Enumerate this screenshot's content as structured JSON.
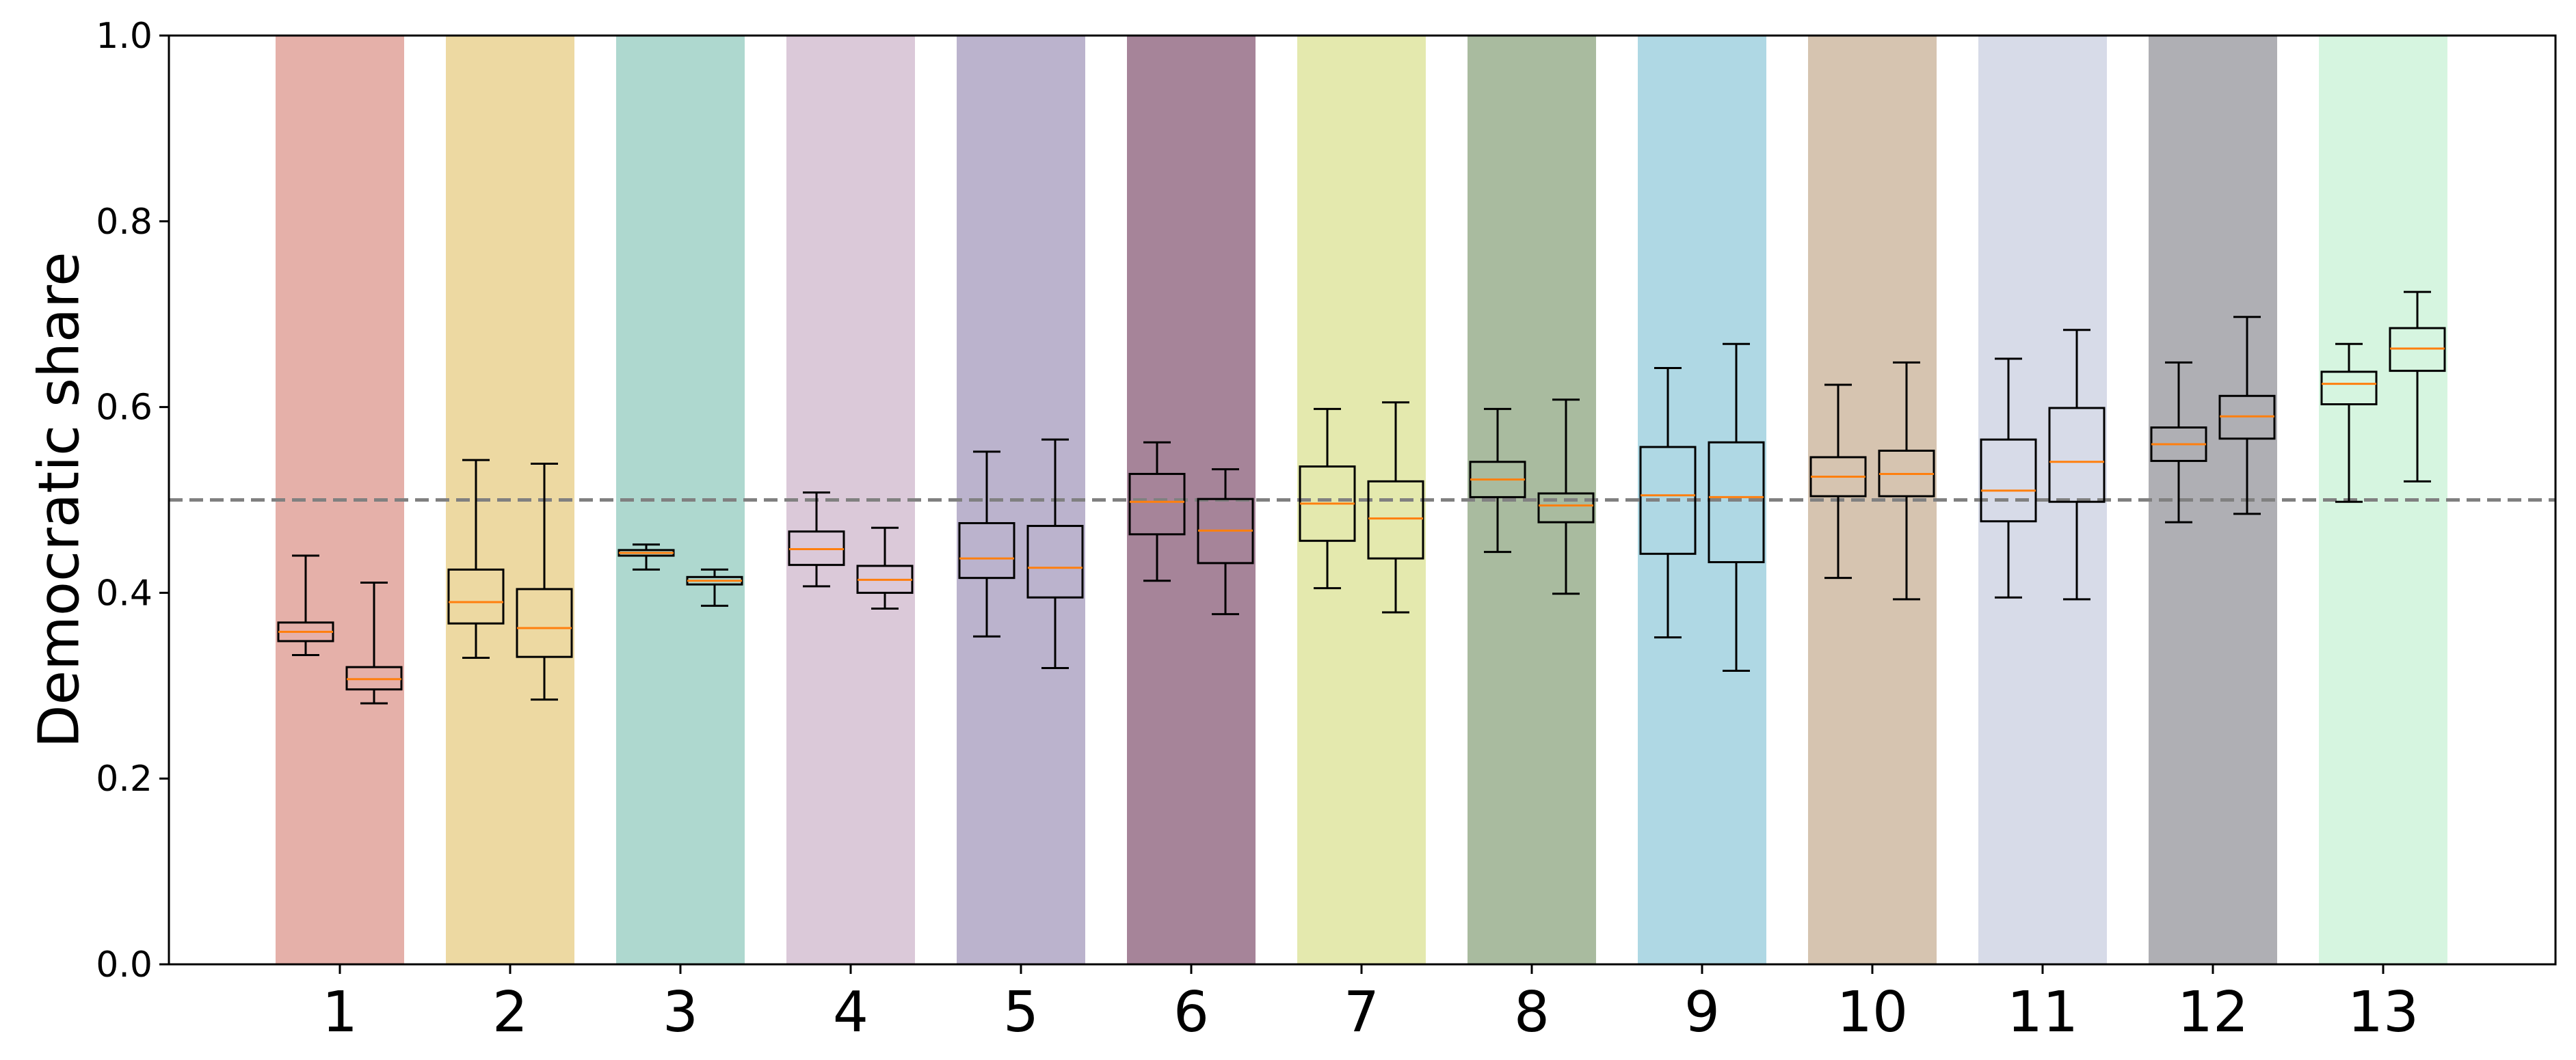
{
  "chart_data": {
    "type": "box",
    "ylabel": "Democratic share",
    "xlabel": "",
    "ylim": [
      0.0,
      1.0
    ],
    "yticks": [
      "0.0",
      "0.2",
      "0.4",
      "0.6",
      "0.8",
      "1.0"
    ],
    "reference_line": {
      "y": 0.5,
      "style": "dashed",
      "color": "#808080"
    },
    "box_edge_color": "#000000",
    "median_color": "#ff7f0e",
    "groups": [
      {
        "label": "1",
        "color": "#e5b0a9",
        "boxes": [
          {
            "whislo": 0.333,
            "q1": 0.348,
            "med": 0.358,
            "q3": 0.368,
            "whishi": 0.44
          },
          {
            "whislo": 0.281,
            "q1": 0.296,
            "med": 0.307,
            "q3": 0.32,
            "whishi": 0.411
          }
        ]
      },
      {
        "label": "2",
        "color": "#edd9a2",
        "boxes": [
          {
            "whislo": 0.33,
            "q1": 0.367,
            "med": 0.39,
            "q3": 0.425,
            "whishi": 0.543
          },
          {
            "whislo": 0.285,
            "q1": 0.331,
            "med": 0.362,
            "q3": 0.404,
            "whishi": 0.539
          }
        ]
      },
      {
        "label": "3",
        "color": "#aed8cf",
        "boxes": [
          {
            "whislo": 0.425,
            "q1": 0.44,
            "med": 0.443,
            "q3": 0.446,
            "whishi": 0.452
          },
          {
            "whislo": 0.386,
            "q1": 0.409,
            "med": 0.413,
            "q3": 0.417,
            "whishi": 0.425
          }
        ]
      },
      {
        "label": "4",
        "color": "#dbc9d9",
        "boxes": [
          {
            "whislo": 0.407,
            "q1": 0.43,
            "med": 0.447,
            "q3": 0.466,
            "whishi": 0.508
          },
          {
            "whislo": 0.383,
            "q1": 0.4,
            "med": 0.414,
            "q3": 0.429,
            "whishi": 0.47
          }
        ]
      },
      {
        "label": "5",
        "color": "#bbb3cd",
        "boxes": [
          {
            "whislo": 0.353,
            "q1": 0.416,
            "med": 0.437,
            "q3": 0.475,
            "whishi": 0.552
          },
          {
            "whislo": 0.319,
            "q1": 0.395,
            "med": 0.427,
            "q3": 0.472,
            "whishi": 0.565
          }
        ]
      },
      {
        "label": "6",
        "color": "#a68499",
        "boxes": [
          {
            "whislo": 0.413,
            "q1": 0.463,
            "med": 0.498,
            "q3": 0.528,
            "whishi": 0.562
          },
          {
            "whislo": 0.377,
            "q1": 0.432,
            "med": 0.467,
            "q3": 0.501,
            "whishi": 0.533
          }
        ]
      },
      {
        "label": "7",
        "color": "#e4e9ae",
        "boxes": [
          {
            "whislo": 0.405,
            "q1": 0.456,
            "med": 0.496,
            "q3": 0.536,
            "whishi": 0.598
          },
          {
            "whislo": 0.379,
            "q1": 0.437,
            "med": 0.48,
            "q3": 0.52,
            "whishi": 0.605
          }
        ]
      },
      {
        "label": "8",
        "color": "#a9bb9f",
        "boxes": [
          {
            "whislo": 0.444,
            "q1": 0.503,
            "med": 0.522,
            "q3": 0.541,
            "whishi": 0.598
          },
          {
            "whislo": 0.399,
            "q1": 0.476,
            "med": 0.494,
            "q3": 0.507,
            "whishi": 0.608
          }
        ]
      },
      {
        "label": "9",
        "color": "#afd8e4",
        "boxes": [
          {
            "whislo": 0.352,
            "q1": 0.442,
            "med": 0.505,
            "q3": 0.557,
            "whishi": 0.642
          },
          {
            "whislo": 0.316,
            "q1": 0.433,
            "med": 0.503,
            "q3": 0.562,
            "whishi": 0.668
          }
        ]
      },
      {
        "label": "10",
        "color": "#d6c4b0",
        "boxes": [
          {
            "whislo": 0.416,
            "q1": 0.504,
            "med": 0.525,
            "q3": 0.546,
            "whishi": 0.624
          },
          {
            "whislo": 0.393,
            "q1": 0.504,
            "med": 0.528,
            "q3": 0.553,
            "whishi": 0.648
          }
        ]
      },
      {
        "label": "11",
        "color": "#d7dbe8",
        "boxes": [
          {
            "whislo": 0.395,
            "q1": 0.477,
            "med": 0.51,
            "q3": 0.565,
            "whishi": 0.652
          },
          {
            "whislo": 0.393,
            "q1": 0.498,
            "med": 0.541,
            "q3": 0.599,
            "whishi": 0.683
          }
        ]
      },
      {
        "label": "12",
        "color": "#afafb4",
        "boxes": [
          {
            "whislo": 0.476,
            "q1": 0.542,
            "med": 0.56,
            "q3": 0.578,
            "whishi": 0.648
          },
          {
            "whislo": 0.485,
            "q1": 0.566,
            "med": 0.59,
            "q3": 0.612,
            "whishi": 0.697
          }
        ]
      },
      {
        "label": "13",
        "color": "#d6f5e0",
        "boxes": [
          {
            "whislo": 0.498,
            "q1": 0.603,
            "med": 0.625,
            "q3": 0.638,
            "whishi": 0.668
          },
          {
            "whislo": 0.52,
            "q1": 0.639,
            "med": 0.663,
            "q3": 0.685,
            "whishi": 0.724
          }
        ]
      }
    ]
  }
}
